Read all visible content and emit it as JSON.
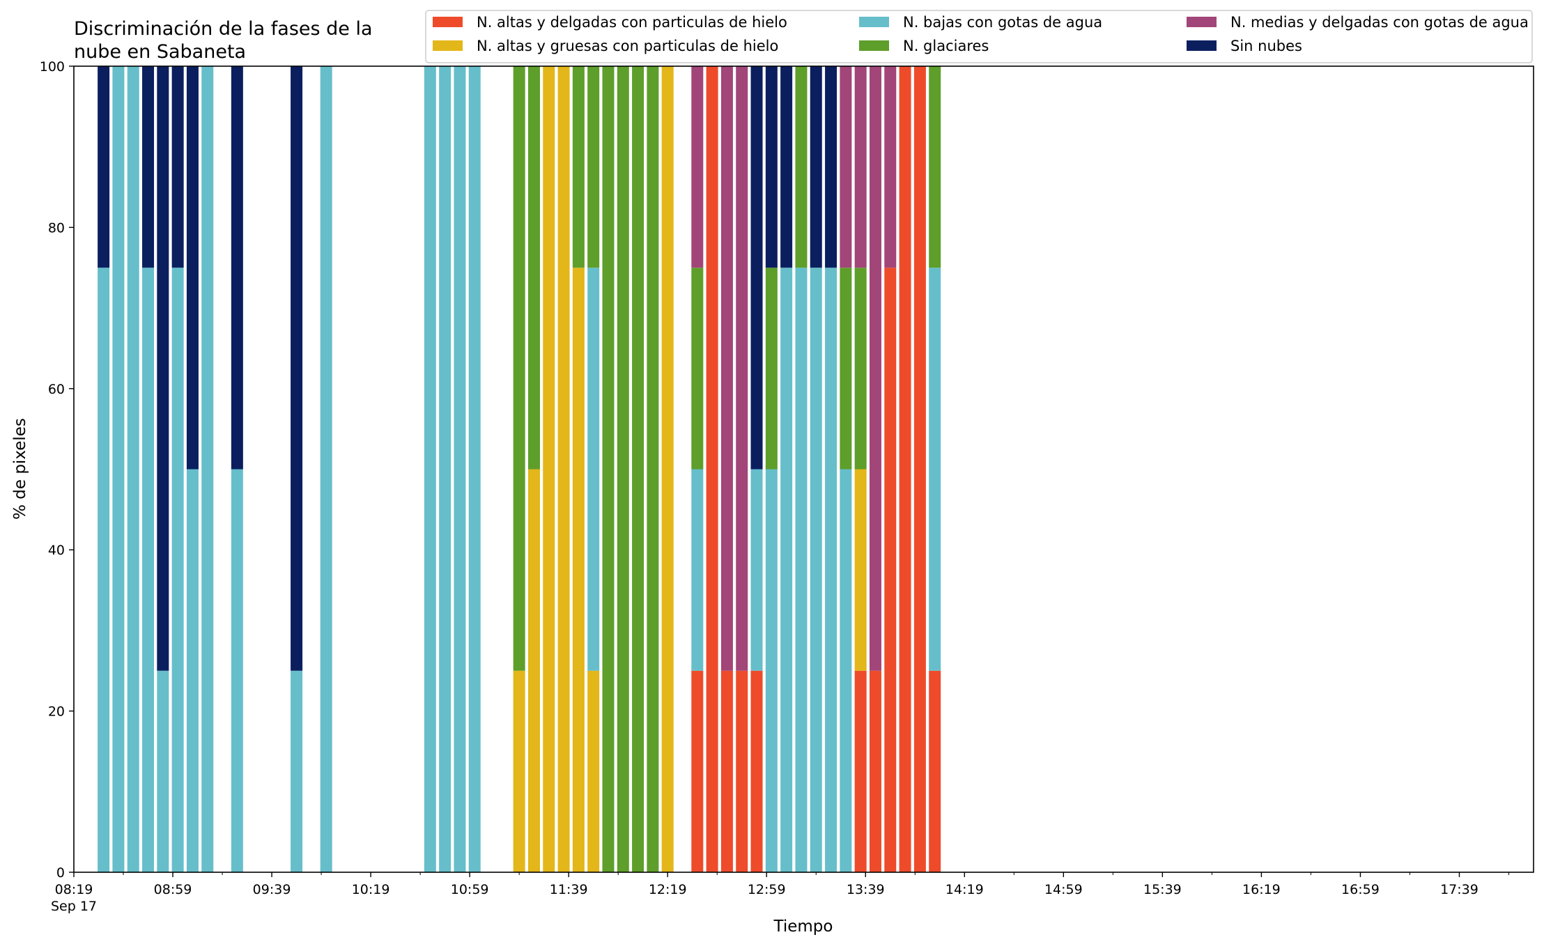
{
  "chart_data": {
    "type": "bar",
    "stacked": true,
    "title_lines": [
      "Discriminación de la fases de la",
      "nube en Sabaneta"
    ],
    "xlabel": "Tiempo",
    "ylabel": "% de pixeles",
    "ylim": [
      0,
      100
    ],
    "yticks": [
      "0",
      "20",
      "40",
      "60",
      "80",
      "100"
    ],
    "xlim": [
      "08:19",
      "18:09"
    ],
    "xticks": [
      {
        "time": "08:19",
        "label": "08:19",
        "sublabel": "Sep 17"
      },
      {
        "time": "08:59",
        "label": "08:59"
      },
      {
        "time": "09:39",
        "label": "09:39"
      },
      {
        "time": "10:19",
        "label": "10:19"
      },
      {
        "time": "10:59",
        "label": "10:59"
      },
      {
        "time": "11:39",
        "label": "11:39"
      },
      {
        "time": "12:19",
        "label": "12:19"
      },
      {
        "time": "12:59",
        "label": "12:59"
      },
      {
        "time": "13:39",
        "label": "13:39"
      },
      {
        "time": "14:19",
        "label": "14:19"
      },
      {
        "time": "14:59",
        "label": "14:59"
      },
      {
        "time": "15:39",
        "label": "15:39"
      },
      {
        "time": "16:19",
        "label": "16:19"
      },
      {
        "time": "16:59",
        "label": "16:59"
      },
      {
        "time": "17:39",
        "label": "17:39"
      }
    ],
    "grid": false,
    "legend_position": "top-right",
    "series": [
      {
        "key": "thin_ice",
        "name": "N. altas y delgadas con particulas de hielo",
        "color": "#EE4B2B"
      },
      {
        "key": "thick_ice",
        "name": "N. altas y gruesas con particulas de hielo",
        "color": "#E3B619"
      },
      {
        "key": "low_water",
        "name": "N. bajas con gotas de agua",
        "color": "#66BECA"
      },
      {
        "key": "glacier",
        "name": "N. glaciares",
        "color": "#5E9E2A"
      },
      {
        "key": "mid_water",
        "name": "N. medias y delgadas con gotas de agua",
        "color": "#A24579"
      },
      {
        "key": "clear",
        "name": "Sin nubes",
        "color": "#0B1F5F"
      }
    ],
    "bars": [
      {
        "time": "08:31",
        "values": [
          0,
          0,
          75,
          0,
          0,
          25
        ]
      },
      {
        "time": "08:37",
        "values": [
          0,
          0,
          100,
          0,
          0,
          0
        ]
      },
      {
        "time": "08:43",
        "values": [
          0,
          0,
          100,
          0,
          0,
          0
        ]
      },
      {
        "time": "08:49",
        "values": [
          0,
          0,
          75,
          0,
          0,
          25
        ]
      },
      {
        "time": "08:55",
        "values": [
          0,
          0,
          25,
          0,
          0,
          75
        ]
      },
      {
        "time": "09:01",
        "values": [
          0,
          0,
          75,
          0,
          0,
          25
        ]
      },
      {
        "time": "09:07",
        "values": [
          0,
          0,
          50,
          0,
          0,
          50
        ]
      },
      {
        "time": "09:13",
        "values": [
          0,
          0,
          100,
          0,
          0,
          0
        ]
      },
      {
        "time": "09:25",
        "values": [
          0,
          0,
          50,
          0,
          0,
          50
        ]
      },
      {
        "time": "09:49",
        "values": [
          0,
          0,
          25,
          0,
          0,
          75
        ]
      },
      {
        "time": "10:01",
        "values": [
          0,
          0,
          100,
          0,
          0,
          0
        ]
      },
      {
        "time": "10:43",
        "values": [
          0,
          0,
          100,
          0,
          0,
          0
        ]
      },
      {
        "time": "10:49",
        "values": [
          0,
          0,
          100,
          0,
          0,
          0
        ]
      },
      {
        "time": "10:55",
        "values": [
          0,
          0,
          100,
          0,
          0,
          0
        ]
      },
      {
        "time": "11:01",
        "values": [
          0,
          0,
          100,
          0,
          0,
          0
        ]
      },
      {
        "time": "11:19",
        "values": [
          0,
          25,
          0,
          75,
          0,
          0
        ]
      },
      {
        "time": "11:25",
        "values": [
          0,
          50,
          0,
          50,
          0,
          0
        ]
      },
      {
        "time": "11:31",
        "values": [
          0,
          100,
          0,
          0,
          0,
          0
        ]
      },
      {
        "time": "11:37",
        "values": [
          0,
          100,
          0,
          0,
          0,
          0
        ]
      },
      {
        "time": "11:43",
        "values": [
          0,
          75,
          0,
          25,
          0,
          0
        ]
      },
      {
        "time": "11:49",
        "values": [
          0,
          25,
          50,
          25,
          0,
          0
        ]
      },
      {
        "time": "11:55",
        "values": [
          0,
          0,
          0,
          100,
          0,
          0
        ]
      },
      {
        "time": "12:01",
        "values": [
          0,
          0,
          0,
          100,
          0,
          0
        ]
      },
      {
        "time": "12:07",
        "values": [
          0,
          0,
          0,
          100,
          0,
          0
        ]
      },
      {
        "time": "12:13",
        "values": [
          0,
          0,
          0,
          100,
          0,
          0
        ]
      },
      {
        "time": "12:19",
        "values": [
          0,
          100,
          0,
          0,
          0,
          0
        ]
      },
      {
        "time": "12:31",
        "values": [
          25,
          0,
          25,
          25,
          25,
          0
        ]
      },
      {
        "time": "12:37",
        "values": [
          100,
          0,
          0,
          0,
          0,
          0
        ]
      },
      {
        "time": "12:43",
        "values": [
          25,
          0,
          0,
          0,
          75,
          0
        ]
      },
      {
        "time": "12:49",
        "values": [
          25,
          0,
          0,
          0,
          75,
          0
        ]
      },
      {
        "time": "12:55",
        "values": [
          25,
          0,
          25,
          0,
          0,
          50
        ]
      },
      {
        "time": "13:01",
        "values": [
          0,
          0,
          50,
          25,
          0,
          25
        ]
      },
      {
        "time": "13:07",
        "values": [
          0,
          0,
          75,
          0,
          0,
          25
        ]
      },
      {
        "time": "13:13",
        "values": [
          0,
          0,
          75,
          25,
          0,
          0
        ]
      },
      {
        "time": "13:19",
        "values": [
          0,
          0,
          75,
          0,
          0,
          25
        ]
      },
      {
        "time": "13:25",
        "values": [
          0,
          0,
          75,
          0,
          0,
          25
        ]
      },
      {
        "time": "13:31",
        "values": [
          0,
          0,
          50,
          25,
          25,
          0
        ]
      },
      {
        "time": "13:37",
        "values": [
          25,
          25,
          0,
          25,
          25,
          0
        ]
      },
      {
        "time": "13:43",
        "values": [
          25,
          0,
          0,
          0,
          75,
          0
        ]
      },
      {
        "time": "13:49",
        "values": [
          75,
          0,
          0,
          0,
          25,
          0
        ]
      },
      {
        "time": "13:55",
        "values": [
          100,
          0,
          0,
          0,
          0,
          0
        ]
      },
      {
        "time": "14:01",
        "values": [
          100,
          0,
          0,
          0,
          0,
          0
        ]
      },
      {
        "time": "14:07",
        "values": [
          25,
          0,
          50,
          25,
          0,
          0
        ]
      }
    ]
  }
}
